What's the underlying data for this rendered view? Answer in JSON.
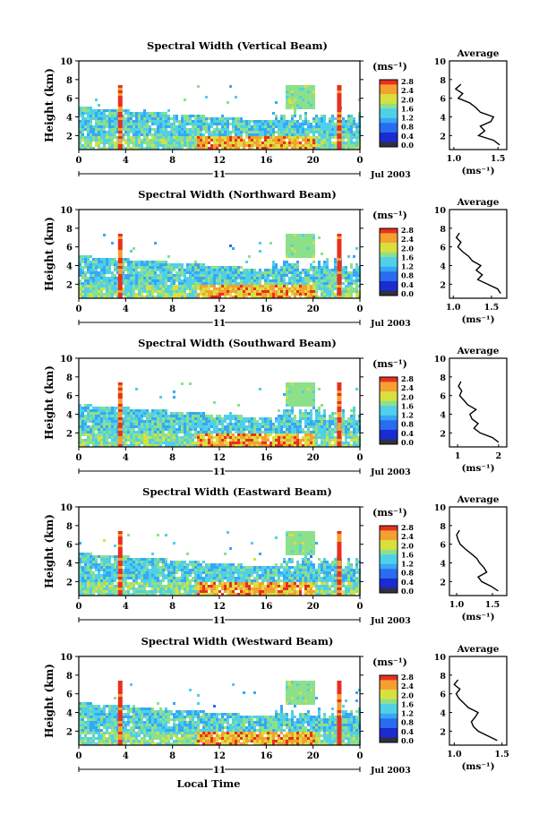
{
  "figure": {
    "x_axis_label": "Local Time",
    "date_label": "Jul 2003",
    "day_label": "11",
    "x_ticks": [
      "0",
      "4",
      "8",
      "12",
      "16",
      "20",
      "0"
    ],
    "y_ticks": [
      "2",
      "4",
      "6",
      "8",
      "10"
    ],
    "ylabel": "Height (km)",
    "colorbar_unit": "(ms⁻¹)",
    "colorbar_ticks": [
      "0.0",
      "0.4",
      "0.8",
      "1.2",
      "1.6",
      "2.0",
      "2.4",
      "2.8"
    ],
    "average_title": "Average",
    "average_xlabel": "(ms⁻¹)",
    "colors": {
      "colormap": [
        "#303040",
        "#1a2bd0",
        "#2a6cf0",
        "#35a8f5",
        "#50d0e8",
        "#8de08a",
        "#d8e040",
        "#f5a030",
        "#e83020"
      ]
    }
  },
  "chart_data": [
    {
      "type": "heatmap",
      "title": "Spectral Width (Vertical Beam)",
      "xlabel": "",
      "ylabel": "Height (km)",
      "xlim": [
        0,
        24
      ],
      "ylim": [
        0.5,
        10
      ],
      "colorbar": {
        "label": "(ms⁻¹)",
        "range": [
          0.0,
          2.8
        ]
      },
      "feature_spike_hours": [
        3.5,
        22.2
      ],
      "average_profile": {
        "title": "Average",
        "xlabel": "(ms⁻¹)",
        "xticks": [
          "1.0",
          "1.5"
        ],
        "xlim": [
          0.95,
          1.6
        ],
        "y": [
          1.0,
          1.5,
          2.0,
          2.5,
          3.0,
          3.5,
          4.0,
          4.5,
          5.0,
          5.5,
          6.0,
          6.5,
          7.0,
          7.5
        ],
        "x": [
          1.52,
          1.45,
          1.28,
          1.35,
          1.3,
          1.42,
          1.45,
          1.3,
          1.25,
          1.18,
          1.05,
          1.1,
          1.02,
          1.08
        ]
      }
    },
    {
      "type": "heatmap",
      "title": "Spectral Width (Northward Beam)",
      "xlabel": "",
      "ylabel": "Height (km)",
      "xlim": [
        0,
        24
      ],
      "ylim": [
        0.5,
        10
      ],
      "colorbar": {
        "label": "(ms⁻¹)",
        "range": [
          0.0,
          2.8
        ]
      },
      "feature_spike_hours": [
        3.5,
        22.2
      ],
      "average_profile": {
        "title": "Average",
        "xlabel": "(ms⁻¹)",
        "xticks": [
          "1.0",
          "1.5"
        ],
        "xlim": [
          0.95,
          1.7
        ],
        "y": [
          1.0,
          1.5,
          2.0,
          2.5,
          3.0,
          3.5,
          4.0,
          4.5,
          5.0,
          5.5,
          6.0,
          6.5,
          7.0,
          7.5
        ],
        "x": [
          1.62,
          1.58,
          1.45,
          1.32,
          1.38,
          1.3,
          1.36,
          1.25,
          1.2,
          1.12,
          1.06,
          1.1,
          1.04,
          1.08
        ]
      }
    },
    {
      "type": "heatmap",
      "title": "Spectral Width (Southward Beam)",
      "xlabel": "",
      "ylabel": "Height (km)",
      "xlim": [
        0,
        24
      ],
      "ylim": [
        0.5,
        10
      ],
      "colorbar": {
        "label": "(ms⁻¹)",
        "range": [
          0.0,
          2.8
        ]
      },
      "feature_spike_hours": [
        3.5,
        22.2
      ],
      "average_profile": {
        "title": "Average",
        "xlabel": "(ms⁻¹)",
        "xticks": [
          "1",
          "2"
        ],
        "xlim": [
          0.8,
          2.2
        ],
        "y": [
          1.0,
          1.5,
          2.0,
          2.5,
          3.0,
          3.5,
          4.0,
          4.5,
          5.0,
          5.5,
          6.0,
          6.5,
          7.0,
          7.5
        ],
        "x": [
          2.0,
          1.85,
          1.55,
          1.4,
          1.5,
          1.35,
          1.3,
          1.45,
          1.25,
          1.15,
          1.05,
          1.1,
          1.02,
          1.08
        ]
      }
    },
    {
      "type": "heatmap",
      "title": "Spectral Width (Eastward Beam)",
      "xlabel": "",
      "ylabel": "Height (km)",
      "xlim": [
        0,
        24
      ],
      "ylim": [
        0.5,
        10
      ],
      "colorbar": {
        "label": "(ms⁻¹)",
        "range": [
          0.0,
          2.8
        ]
      },
      "feature_spike_hours": [
        3.5,
        22.2
      ],
      "average_profile": {
        "title": "Average",
        "xlabel": "(ms⁻¹)",
        "xticks": [
          "1.0",
          "1.5"
        ],
        "xlim": [
          0.9,
          1.7
        ],
        "y": [
          1.0,
          1.5,
          2.0,
          2.5,
          3.0,
          3.5,
          4.0,
          4.5,
          5.0,
          5.5,
          6.0,
          6.5,
          7.0,
          7.5
        ],
        "x": [
          1.58,
          1.48,
          1.35,
          1.3,
          1.42,
          1.38,
          1.32,
          1.28,
          1.2,
          1.12,
          1.05,
          1.02,
          1.0,
          1.04
        ]
      }
    },
    {
      "type": "heatmap",
      "title": "Spectral Width (Westward Beam)",
      "xlabel": "Local Time",
      "ylabel": "Height (km)",
      "xlim": [
        0,
        24
      ],
      "ylim": [
        0.5,
        10
      ],
      "colorbar": {
        "label": "(ms⁻¹)",
        "range": [
          0.0,
          2.8
        ]
      },
      "feature_spike_hours": [
        3.5,
        22.2
      ],
      "average_profile": {
        "title": "Average",
        "xlabel": "(ms⁻¹)",
        "xticks": [
          "1.0",
          "1.5"
        ],
        "xlim": [
          0.95,
          1.55
        ],
        "y": [
          1.0,
          1.5,
          2.0,
          2.5,
          3.0,
          3.5,
          4.0,
          4.5,
          5.0,
          5.5,
          6.0,
          6.5,
          7.0,
          7.5
        ],
        "x": [
          1.45,
          1.35,
          1.25,
          1.2,
          1.18,
          1.22,
          1.25,
          1.15,
          1.1,
          1.05,
          1.02,
          1.06,
          1.0,
          1.04
        ]
      }
    }
  ]
}
